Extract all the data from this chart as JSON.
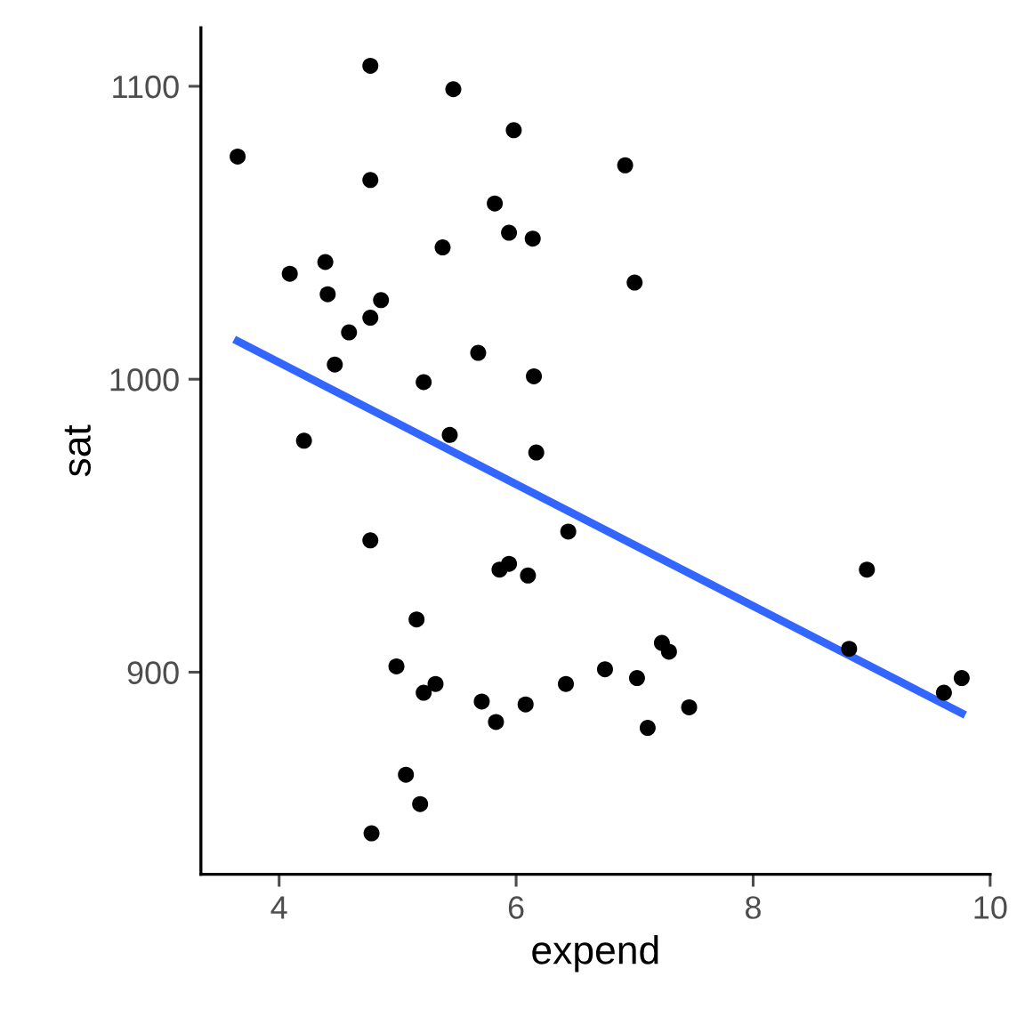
{
  "chart_data": {
    "type": "scatter",
    "xlabel": "expend",
    "ylabel": "sat",
    "xlim": [
      3.34,
      10.0
    ],
    "ylim": [
      831,
      1120
    ],
    "xticks": [
      4,
      6,
      8,
      10
    ],
    "yticks": [
      900,
      1000,
      1100
    ],
    "grid": false,
    "legend": false,
    "series": [
      {
        "marker": "circle",
        "color": "#000000",
        "x": [
          3.65,
          4.77,
          5.47,
          5.98,
          6.92,
          4.77,
          5.82,
          5.94,
          6.14,
          5.38,
          4.39,
          4.09,
          7.0,
          4.41,
          4.86,
          4.77,
          4.59,
          4.47,
          5.68,
          6.15,
          5.22,
          5.44,
          4.21,
          6.17,
          6.44,
          4.77,
          8.96,
          5.86,
          5.94,
          6.1,
          5.16,
          4.99,
          5.22,
          5.32,
          5.71,
          5.83,
          6.08,
          6.42,
          6.75,
          7.02,
          7.23,
          7.29,
          7.11,
          7.46,
          8.81,
          9.61,
          9.76,
          5.07,
          5.19,
          4.78
        ],
        "values": [
          1076,
          1107,
          1099,
          1085,
          1073,
          1068,
          1060,
          1050,
          1048,
          1045,
          1040,
          1036,
          1033,
          1029,
          1027,
          1021,
          1016,
          1005,
          1009,
          1001,
          999,
          981,
          979,
          975,
          948,
          945,
          935,
          935,
          937,
          933,
          918,
          902,
          893,
          896,
          890,
          883,
          889,
          896,
          901,
          898,
          910,
          907,
          881,
          888,
          908,
          893,
          898,
          865,
          855,
          845
        ]
      },
      {
        "type": "line",
        "marker": "none",
        "color": "#3366ff",
        "line_style": "solid",
        "x": [
          3.65,
          9.76
        ],
        "values": [
          1013,
          886
        ]
      }
    ]
  }
}
